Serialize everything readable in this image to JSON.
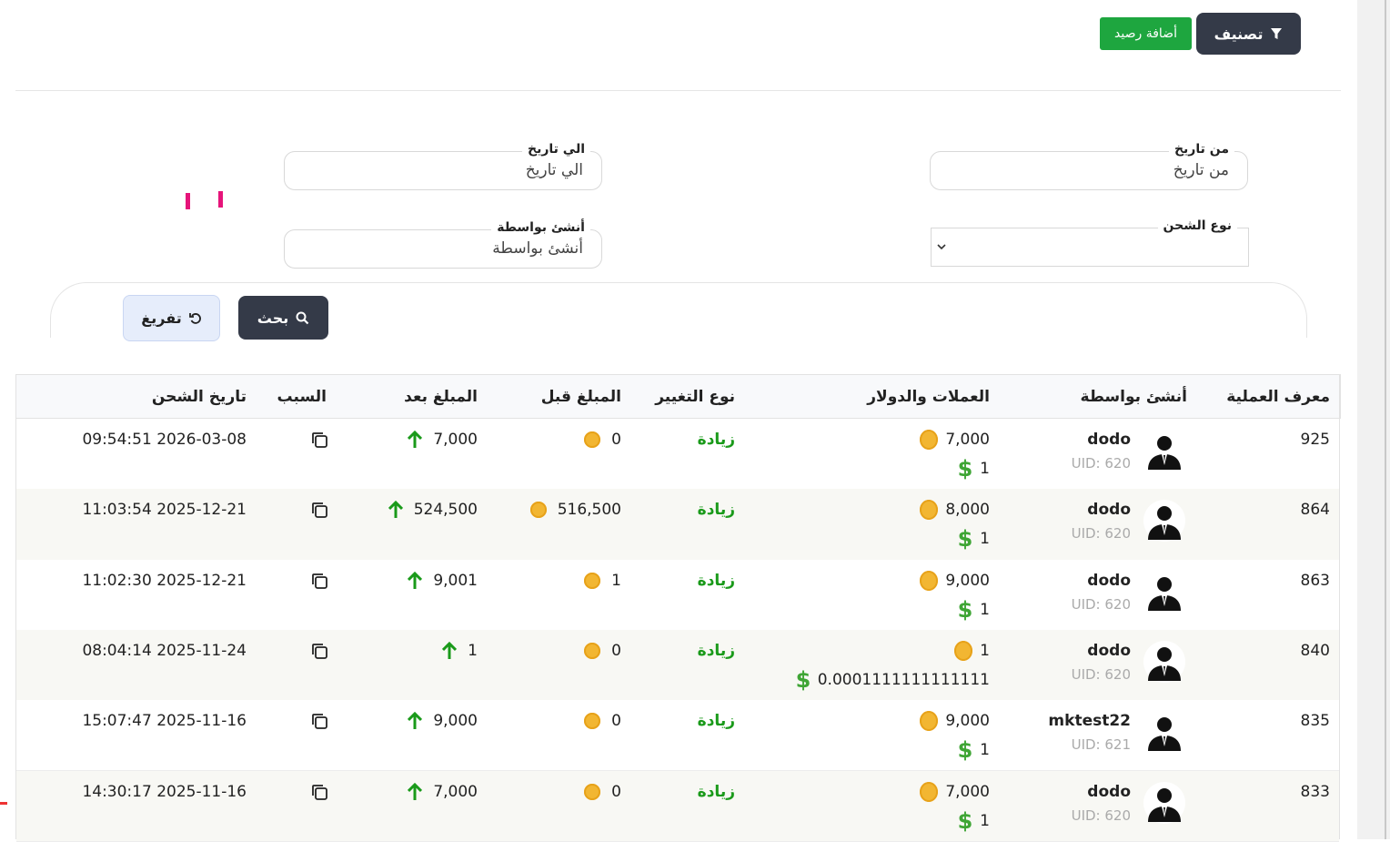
{
  "header": {
    "filter_button": "تصنيف",
    "add_balance_button": "أضافة رصيد"
  },
  "filters": {
    "from_date": {
      "label": "من تاريخ",
      "placeholder": "من تاريخ"
    },
    "to_date": {
      "label": "الي تاريخ",
      "placeholder": "الي تاريخ"
    },
    "charge_type": {
      "label": "نوع الشحن"
    },
    "created_by": {
      "label": "أنشئ بواسطة",
      "placeholder": "أنشئ بواسطة"
    },
    "search_button": "بحث",
    "reset_button": "تفريغ"
  },
  "table": {
    "columns": [
      "معرف العملية",
      "أنشئ بواسطة",
      "العملات والدولار",
      "نوع التغيير",
      "المبلغ قبل",
      "المبلغ بعد",
      "السبب",
      "تاريخ الشحن"
    ],
    "rows": [
      {
        "id": "925",
        "user": "dodo",
        "uid": "UID: 620",
        "coins": "7,000",
        "dollars": "1",
        "change_type": "زيادة",
        "before": "0",
        "after": "7,000",
        "date": "2026-03-08 09:54:51"
      },
      {
        "id": "864",
        "user": "dodo",
        "uid": "UID: 620",
        "coins": "8,000",
        "dollars": "1",
        "change_type": "زيادة",
        "before": "516,500",
        "after": "524,500",
        "date": "2025-12-21 11:03:54"
      },
      {
        "id": "863",
        "user": "dodo",
        "uid": "UID: 620",
        "coins": "9,000",
        "dollars": "1",
        "change_type": "زيادة",
        "before": "1",
        "after": "9,001",
        "date": "2025-12-21 11:02:30"
      },
      {
        "id": "840",
        "user": "dodo",
        "uid": "UID: 620",
        "coins": "1",
        "dollars": "0.0001111111111111",
        "change_type": "زيادة",
        "before": "0",
        "after": "1",
        "date": "2025-11-24 08:04:14"
      },
      {
        "id": "835",
        "user": "mktest22",
        "uid": "UID: 621",
        "coins": "9,000",
        "dollars": "1",
        "change_type": "زيادة",
        "before": "0",
        "after": "9,000",
        "date": "2025-11-16 15:07:47"
      },
      {
        "id": "833",
        "user": "dodo",
        "uid": "UID: 620",
        "coins": "7,000",
        "dollars": "1",
        "change_type": "زيادة",
        "before": "0",
        "after": "7,000",
        "date": "2025-11-16 14:30:17"
      }
    ]
  }
}
